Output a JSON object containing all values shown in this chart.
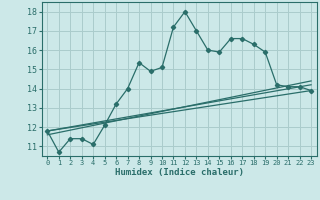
{
  "title": "",
  "xlabel": "Humidex (Indice chaleur)",
  "background_color": "#cce8e8",
  "grid_color": "#aacccc",
  "line_color": "#2a6e6a",
  "xlim": [
    -0.5,
    23.5
  ],
  "ylim": [
    10.5,
    18.5
  ],
  "xticks": [
    0,
    1,
    2,
    3,
    4,
    5,
    6,
    7,
    8,
    9,
    10,
    11,
    12,
    13,
    14,
    15,
    16,
    17,
    18,
    19,
    20,
    21,
    22,
    23
  ],
  "yticks": [
    11,
    12,
    13,
    14,
    15,
    16,
    17,
    18
  ],
  "line1_x": [
    0,
    1,
    2,
    3,
    4,
    5,
    6,
    7,
    8,
    9,
    10,
    11,
    12,
    13,
    14,
    15,
    16,
    17,
    18,
    19,
    20,
    21,
    22,
    23
  ],
  "line1_y": [
    11.8,
    10.7,
    11.4,
    11.4,
    11.1,
    12.1,
    13.2,
    14.0,
    15.35,
    14.9,
    15.1,
    17.2,
    18.0,
    17.0,
    16.0,
    15.9,
    16.6,
    16.6,
    16.3,
    15.9,
    14.2,
    14.1,
    14.1,
    13.9
  ],
  "line2_x": [
    0,
    23
  ],
  "line2_y": [
    11.8,
    14.2
  ],
  "line3_x": [
    0,
    23
  ],
  "line3_y": [
    11.8,
    13.9
  ],
  "line4_x": [
    0,
    23
  ],
  "line4_y": [
    11.6,
    14.4
  ]
}
